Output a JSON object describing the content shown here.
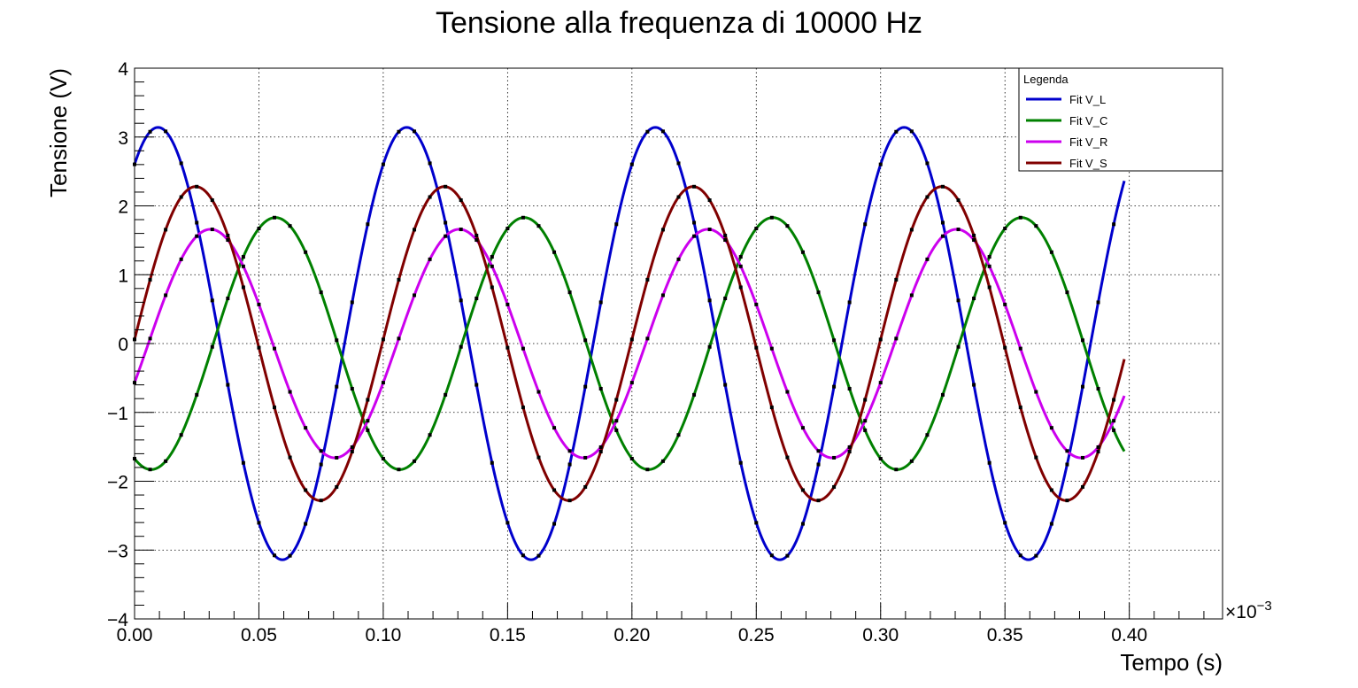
{
  "chart_data": {
    "type": "line",
    "title": "Tensione alla frequenza di 10000 Hz",
    "xlabel": "Tempo (s)",
    "ylabel": "Tensione (V)",
    "x_multiplier": "×10",
    "x_multiplier_exp": "−3",
    "xlim": [
      0,
      0.4375
    ],
    "ylim": [
      -4,
      4
    ],
    "xticks": [
      0.0,
      0.05,
      0.1,
      0.15,
      0.2,
      0.25,
      0.3,
      0.35,
      0.4
    ],
    "xtick_labels": [
      "0.00",
      "0.05",
      "0.10",
      "0.15",
      "0.20",
      "0.25",
      "0.30",
      "0.35",
      "0.40"
    ],
    "yticks": [
      -4,
      -3,
      -2,
      -1,
      0,
      1,
      2,
      3,
      4
    ],
    "ytick_labels": [
      "−4",
      "−3",
      "−2",
      "−1",
      "0",
      "1",
      "2",
      "3",
      "4"
    ],
    "grid": true,
    "legend": {
      "title": "Legenda",
      "position": "top-right"
    },
    "x_range": [
      0,
      0.398
    ],
    "series": [
      {
        "name": "Fit V_L",
        "color": "#0000cc",
        "amplitude": 3.14,
        "frequency": 10000,
        "phase_deg": 56.0
      },
      {
        "name": "Fit V_C",
        "color": "#008000",
        "amplitude": 1.83,
        "frequency": 10000,
        "phase_deg": -114.0
      },
      {
        "name": "Fit V_R",
        "color": "#cc00ee",
        "amplitude": 1.66,
        "frequency": 10000,
        "phase_deg": -20.0
      },
      {
        "name": "Fit V_S",
        "color": "#800000",
        "amplitude": 2.28,
        "frequency": 10000,
        "phase_deg": 1.5
      }
    ],
    "data_points": {
      "marker_color": "#000000",
      "x_step": 0.00625
    }
  }
}
